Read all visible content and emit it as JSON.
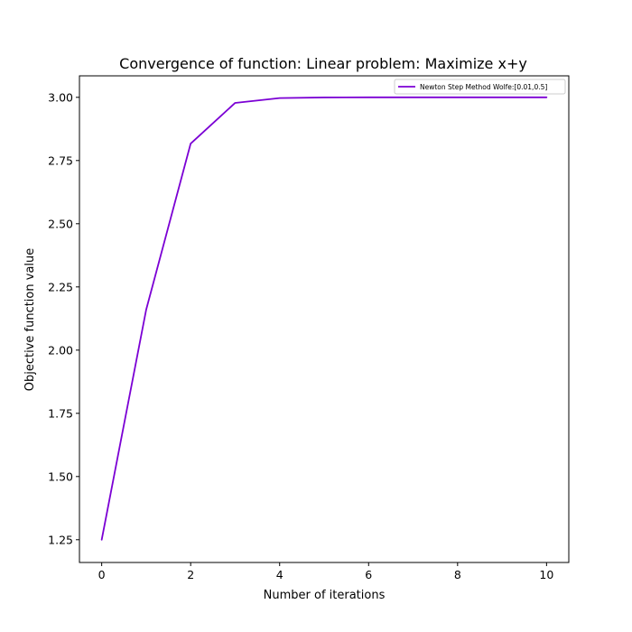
{
  "chart_data": {
    "type": "line",
    "title": "Convergence of function: Linear problem: Maximize x+y",
    "xlabel": "Number of iterations",
    "ylabel": "Objective function value",
    "x": [
      0,
      1,
      2,
      3,
      4,
      5,
      6,
      7,
      8,
      9,
      10
    ],
    "series": [
      {
        "name": "Newton Step Method Wolfe:[0.01,0.5]",
        "color": "#7b00d4",
        "values": [
          1.25,
          2.16,
          2.817,
          2.978,
          2.997,
          2.9995,
          2.9999,
          3.0,
          3.0,
          3.0,
          3.0
        ]
      }
    ],
    "xlim": [
      -0.5,
      10.5
    ],
    "ylim": [
      1.16,
      3.085
    ],
    "xticks": [
      0,
      2,
      4,
      6,
      8,
      10
    ],
    "xtick_labels": [
      "0",
      "2",
      "4",
      "6",
      "8",
      "10"
    ],
    "yticks": [
      1.25,
      1.5,
      1.75,
      2.0,
      2.25,
      2.5,
      2.75,
      3.0
    ],
    "ytick_labels": [
      "1.25",
      "1.50",
      "1.75",
      "2.00",
      "2.25",
      "2.50",
      "2.75",
      "3.00"
    ],
    "grid": false,
    "legend_position": "upper-right"
  }
}
